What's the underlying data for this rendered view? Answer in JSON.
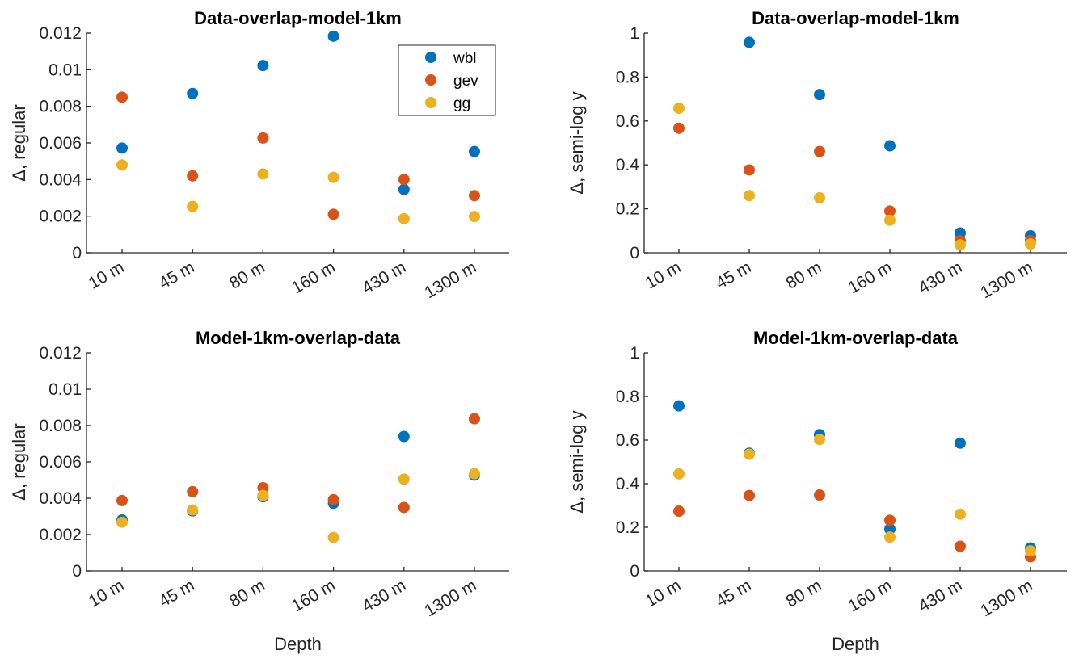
{
  "legend": [
    {
      "name": "wbl",
      "color": "#0072BD"
    },
    {
      "name": "gev",
      "color": "#D95319"
    },
    {
      "name": "gg",
      "color": "#EDB120"
    }
  ],
  "chart_data": [
    {
      "type": "scatter",
      "id": "top-left",
      "title": "Data-overlap-model-1km",
      "xlabel": "",
      "ylabel": "Δ, regular",
      "categories": [
        "10 m",
        "45 m",
        "80 m",
        "160 m",
        "430 m",
        "1300 m"
      ],
      "ylim": [
        0,
        0.012
      ],
      "yticks": [
        "0",
        "0.002",
        "0.004",
        "0.006",
        "0.008",
        "0.01",
        "0.012"
      ],
      "ytick_values": [
        0,
        0.002,
        0.004,
        0.006,
        0.008,
        0.01,
        0.012
      ],
      "legend": "top-right",
      "grid": false,
      "series": [
        {
          "name": "wbl",
          "values": [
            0.00572,
            0.0087,
            0.01023,
            0.01183,
            0.00346,
            0.00553
          ]
        },
        {
          "name": "gev",
          "values": [
            0.0085,
            0.0042,
            0.00627,
            0.0021,
            0.004,
            0.00312
          ]
        },
        {
          "name": "gg",
          "values": [
            0.0048,
            0.00253,
            0.0043,
            0.00412,
            0.00186,
            0.00198
          ]
        }
      ]
    },
    {
      "type": "scatter",
      "id": "top-right",
      "title": "Data-overlap-model-1km",
      "xlabel": "",
      "ylabel": "Δ, semi-log y",
      "categories": [
        "10 m",
        "45 m",
        "80 m",
        "160 m",
        "430 m",
        "1300 m"
      ],
      "ylim": [
        0,
        1
      ],
      "yticks": [
        "0",
        "0.2",
        "0.4",
        "0.6",
        "0.8",
        "1"
      ],
      "ytick_values": [
        0,
        0.2,
        0.4,
        0.6,
        0.8,
        1
      ],
      "grid": false,
      "series": [
        {
          "name": "wbl",
          "values": [
            null,
            0.958,
            0.72,
            0.487,
            0.09,
            0.077
          ]
        },
        {
          "name": "gev",
          "values": [
            0.567,
            0.377,
            0.461,
            0.19,
            0.055,
            0.055
          ]
        },
        {
          "name": "gg",
          "values": [
            0.658,
            0.26,
            0.25,
            0.148,
            0.036,
            0.04
          ]
        }
      ]
    },
    {
      "type": "scatter",
      "id": "bottom-left",
      "title": "Model-1km-overlap-data",
      "xlabel": "Depth",
      "ylabel": "Δ, regular",
      "categories": [
        "10 m",
        "45 m",
        "80 m",
        "160 m",
        "430 m",
        "1300 m"
      ],
      "ylim": [
        0,
        0.012
      ],
      "yticks": [
        "0",
        "0.002",
        "0.004",
        "0.006",
        "0.008",
        "0.01",
        "0.012"
      ],
      "ytick_values": [
        0,
        0.002,
        0.004,
        0.006,
        0.008,
        0.01,
        0.012
      ],
      "grid": false,
      "series": [
        {
          "name": "wbl",
          "values": [
            0.0028,
            0.0033,
            0.00408,
            0.00372,
            0.0074,
            0.00527
          ]
        },
        {
          "name": "gev",
          "values": [
            0.00387,
            0.00436,
            0.00458,
            0.00392,
            0.00349,
            0.00837
          ]
        },
        {
          "name": "gg",
          "values": [
            0.00268,
            0.00335,
            0.00415,
            0.00184,
            0.00505,
            0.00535
          ]
        }
      ]
    },
    {
      "type": "scatter",
      "id": "bottom-right",
      "title": "Model-1km-overlap-data",
      "xlabel": "Depth",
      "ylabel": "Δ, semi-log y",
      "categories": [
        "10 m",
        "45 m",
        "80 m",
        "160 m",
        "430 m",
        "1300 m"
      ],
      "ylim": [
        0,
        1
      ],
      "yticks": [
        "0",
        "0.2",
        "0.4",
        "0.6",
        "0.8",
        "1"
      ],
      "ytick_values": [
        0,
        0.2,
        0.4,
        0.6,
        0.8,
        1
      ],
      "grid": false,
      "series": [
        {
          "name": "wbl",
          "values": [
            0.757,
            0.54,
            0.625,
            0.192,
            0.586,
            0.105
          ]
        },
        {
          "name": "gev",
          "values": [
            0.274,
            0.346,
            0.348,
            0.232,
            0.113,
            0.065
          ]
        },
        {
          "name": "gg",
          "values": [
            0.445,
            0.535,
            0.603,
            0.155,
            0.26,
            0.092
          ]
        }
      ]
    }
  ]
}
